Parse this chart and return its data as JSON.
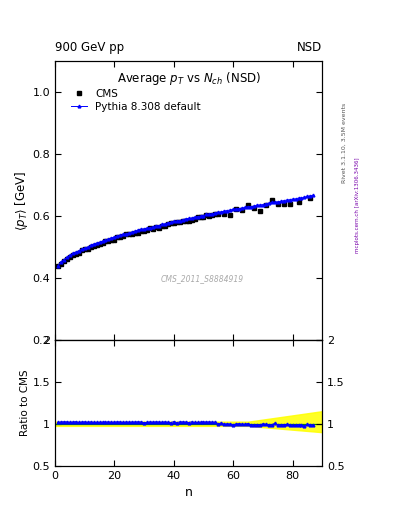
{
  "title_main": "Average $p_T$ vs $N_{ch}$ (NSD)",
  "header_left": "900 GeV pp",
  "header_right": "NSD",
  "watermark": "CMS_2011_S8884919",
  "right_label1": "Rivet 3.1.10, 3.5M events",
  "right_label2": "mcplots.cern.ch [arXiv:1306.3436]",
  "ylabel_main": "$\\langle p_T \\rangle$ [GeV]",
  "ylabel_ratio": "Ratio to CMS",
  "xlabel": "n",
  "ylim_main": [
    0.2,
    1.1
  ],
  "ylim_ratio": [
    0.5,
    2.0
  ],
  "yticks_main": [
    0.2,
    0.4,
    0.6,
    0.8,
    1.0
  ],
  "yticks_ratio": [
    0.5,
    1.0,
    1.5,
    2.0
  ],
  "xlim": [
    0,
    90
  ],
  "xticks": [
    0,
    20,
    40,
    60,
    80
  ],
  "cms_color": "#000000",
  "pythia_color": "#0000ff",
  "green_line": "#00aa00"
}
